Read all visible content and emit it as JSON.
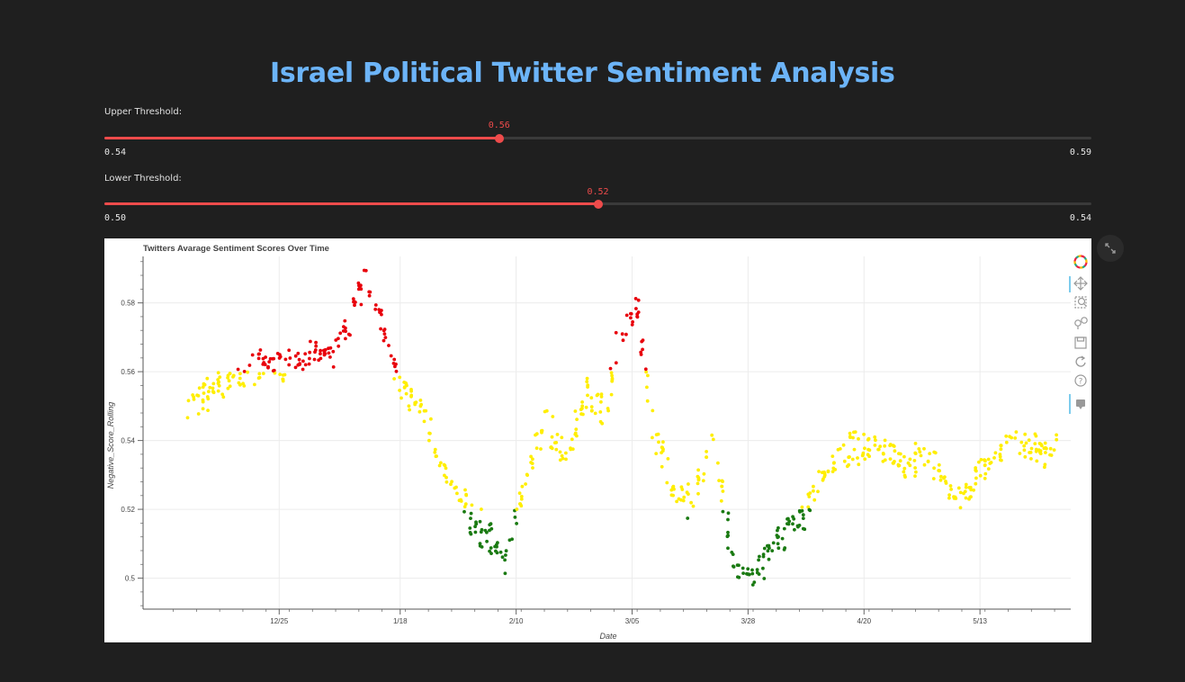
{
  "title": "Israel Political Twitter Sentiment Analysis",
  "upper_slider": {
    "label": "Upper Threshold:",
    "value": 0.56,
    "value_text": "0.56",
    "min": 0.54,
    "max": 0.59,
    "min_text": "0.54",
    "max_text": "0.59"
  },
  "lower_slider": {
    "label": "Lower Threshold:",
    "value": 0.52,
    "value_text": "0.52",
    "min": 0.5,
    "max": 0.54,
    "min_text": "0.50",
    "max_text": "0.54"
  },
  "colors": {
    "accent": "#ee4b4b",
    "title": "#6cb4f8",
    "high": "#e8000b",
    "mid": "#ffee00",
    "low": "#1a7a12"
  },
  "chart_data": {
    "type": "scatter",
    "title": "Twitters Avarage Sentiment Scores  Over Time",
    "xlabel": "Date",
    "ylabel": "Negative_Score_Rolling",
    "x_start": "2021-12-07",
    "x_end": "2022-05-28",
    "xlim": [
      "2021-11-28",
      "2022-05-31"
    ],
    "ylim": [
      0.491,
      0.5935
    ],
    "x_ticks": [
      {
        "date": "2021-12-25",
        "label": "12/25"
      },
      {
        "date": "2022-01-18",
        "label": "1/18"
      },
      {
        "date": "2022-02-10",
        "label": "2/10"
      },
      {
        "date": "2022-03-05",
        "label": "3/05"
      },
      {
        "date": "2022-03-28",
        "label": "3/28"
      },
      {
        "date": "2022-04-20",
        "label": "4/20"
      },
      {
        "date": "2022-05-13",
        "label": "5/13"
      }
    ],
    "y_ticks": [
      {
        "value": 0.5,
        "label": "0.5"
      },
      {
        "value": 0.52,
        "label": "0.52"
      },
      {
        "value": 0.54,
        "label": "0.54"
      },
      {
        "value": 0.56,
        "label": "0.56"
      },
      {
        "value": 0.58,
        "label": "0.58"
      }
    ],
    "color_rule": {
      "above_upper": "red",
      "between": "yellow",
      "below_lower": "green"
    },
    "trend": [
      {
        "date": "2021-12-07",
        "value": 0.549
      },
      {
        "date": "2021-12-14",
        "value": 0.557
      },
      {
        "date": "2021-12-21",
        "value": 0.561
      },
      {
        "date": "2021-12-28",
        "value": 0.563
      },
      {
        "date": "2022-01-04",
        "value": 0.565
      },
      {
        "date": "2022-01-08",
        "value": 0.573
      },
      {
        "date": "2022-01-11",
        "value": 0.587
      },
      {
        "date": "2022-01-15",
        "value": 0.572
      },
      {
        "date": "2022-01-18",
        "value": 0.555
      },
      {
        "date": "2022-01-23",
        "value": 0.548
      },
      {
        "date": "2022-01-27",
        "value": 0.528
      },
      {
        "date": "2022-02-01",
        "value": 0.518
      },
      {
        "date": "2022-02-05",
        "value": 0.511
      },
      {
        "date": "2022-02-08",
        "value": 0.504
      },
      {
        "date": "2022-02-11",
        "value": 0.525
      },
      {
        "date": "2022-02-16",
        "value": 0.545
      },
      {
        "date": "2022-02-20",
        "value": 0.535
      },
      {
        "date": "2022-02-24",
        "value": 0.554
      },
      {
        "date": "2022-02-28",
        "value": 0.548
      },
      {
        "date": "2022-03-02",
        "value": 0.567
      },
      {
        "date": "2022-03-06",
        "value": 0.578
      },
      {
        "date": "2022-03-09",
        "value": 0.545
      },
      {
        "date": "2022-03-13",
        "value": 0.526
      },
      {
        "date": "2022-03-17",
        "value": 0.522
      },
      {
        "date": "2022-03-21",
        "value": 0.54
      },
      {
        "date": "2022-03-25",
        "value": 0.505
      },
      {
        "date": "2022-03-29",
        "value": 0.5
      },
      {
        "date": "2022-04-02",
        "value": 0.51
      },
      {
        "date": "2022-04-07",
        "value": 0.517
      },
      {
        "date": "2022-04-12",
        "value": 0.53
      },
      {
        "date": "2022-04-17",
        "value": 0.537
      },
      {
        "date": "2022-04-22",
        "value": 0.54
      },
      {
        "date": "2022-04-28",
        "value": 0.533
      },
      {
        "date": "2022-05-03",
        "value": 0.536
      },
      {
        "date": "2022-05-08",
        "value": 0.522
      },
      {
        "date": "2022-05-13",
        "value": 0.53
      },
      {
        "date": "2022-05-18",
        "value": 0.538
      }
    ]
  }
}
